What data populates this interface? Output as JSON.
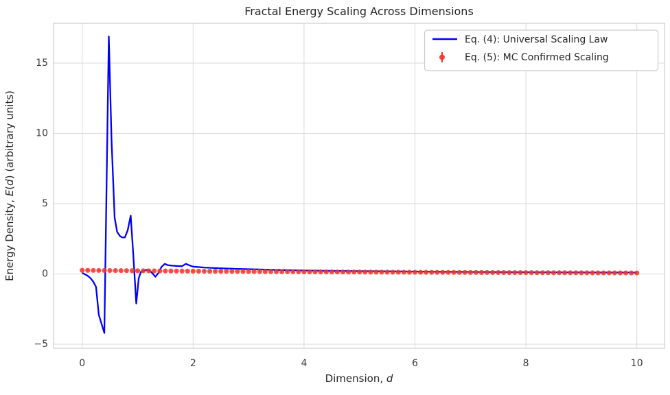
{
  "title": "Fractal Energy Scaling Across Dimensions",
  "axes": {
    "xlabel_prefix": "Dimension, ",
    "xlabel_italic": "d",
    "ylabel_p1": "Energy Density, ",
    "ylabel_E": "E",
    "ylabel_p2": "(",
    "ylabel_d": "d",
    "ylabel_p3": ") (arbitrary units)",
    "xtick_labels": [
      "0",
      "2",
      "4",
      "6",
      "8",
      "10"
    ],
    "ytick_labels": [
      "−5",
      "0",
      "5",
      "10",
      "15"
    ]
  },
  "legend": {
    "entries": [
      {
        "label": "Eq. (4): Universal Scaling Law",
        "marker": "line",
        "color": "#0000f5"
      },
      {
        "label": "Eq. (5): MC Confirmed Scaling",
        "marker": "errorbar-dot",
        "color": "#f0372b"
      }
    ]
  },
  "colors": {
    "line_series": "#0000f5",
    "scatter_series": "#f0372b",
    "errorbar": "#dd2418",
    "grid": "#d9d9d9",
    "spine": "#cbcbcb",
    "text": "#262626"
  },
  "chart_data": {
    "type": "line",
    "title": "Fractal Energy Scaling Across Dimensions",
    "xlabel": "Dimension, d",
    "ylabel": "Energy Density, E(d) (arbitrary units)",
    "xlim": [
      -0.52,
      10.5
    ],
    "ylim": [
      -5.3,
      17.8
    ],
    "xticks": [
      0,
      2,
      4,
      6,
      8,
      10
    ],
    "yticks": [
      -5,
      0,
      5,
      10,
      15
    ],
    "grid": true,
    "legend_position": "upper right",
    "series": [
      {
        "name": "Eq. (4): Universal Scaling Law",
        "type": "line",
        "color": "#0000f5",
        "points": [
          [
            0,
            0.07
          ],
          [
            0.05,
            -0.02
          ],
          [
            0.1,
            -0.13
          ],
          [
            0.15,
            -0.3
          ],
          [
            0.2,
            -0.55
          ],
          [
            0.25,
            -0.92
          ],
          [
            0.3,
            -2.9
          ],
          [
            0.4,
            -4.2
          ],
          [
            0.48,
            16.9
          ],
          [
            0.53,
            9.5
          ],
          [
            0.585,
            4.0
          ],
          [
            0.63,
            3.0
          ],
          [
            0.68,
            2.7
          ],
          [
            0.72,
            2.6
          ],
          [
            0.77,
            2.6
          ],
          [
            0.82,
            3.1
          ],
          [
            0.875,
            4.15
          ],
          [
            0.92,
            1.5
          ],
          [
            0.975,
            -2.1
          ],
          [
            1.02,
            -0.3
          ],
          [
            1.06,
            0.15
          ],
          [
            1.11,
            0.22
          ],
          [
            1.16,
            0.3
          ],
          [
            1.21,
            0.25
          ],
          [
            1.26,
            0.08
          ],
          [
            1.32,
            -0.2
          ],
          [
            1.38,
            0.1
          ],
          [
            1.43,
            0.5
          ],
          [
            1.49,
            0.72
          ],
          [
            1.54,
            0.63
          ],
          [
            1.6,
            0.6
          ],
          [
            1.7,
            0.57
          ],
          [
            1.8,
            0.55
          ],
          [
            1.87,
            0.72
          ],
          [
            1.94,
            0.6
          ],
          [
            2,
            0.52
          ],
          [
            2.2,
            0.46
          ],
          [
            2.4,
            0.42
          ],
          [
            2.6,
            0.39
          ],
          [
            2.8,
            0.36
          ],
          [
            3,
            0.34
          ],
          [
            3.3,
            0.31
          ],
          [
            3.6,
            0.28
          ],
          [
            4,
            0.25
          ],
          [
            4.5,
            0.22
          ],
          [
            5,
            0.2
          ],
          [
            5.5,
            0.185
          ],
          [
            6,
            0.17
          ],
          [
            6.5,
            0.155
          ],
          [
            7,
            0.145
          ],
          [
            7.5,
            0.135
          ],
          [
            8,
            0.125
          ],
          [
            8.5,
            0.12
          ],
          [
            9,
            0.115
          ],
          [
            9.5,
            0.108
          ],
          [
            10,
            0.1
          ]
        ]
      },
      {
        "name": "Eq. (5): MC Confirmed Scaling",
        "type": "scatter-errorbar",
        "color": "#f0372b",
        "x_start": 0,
        "x_step": 0.1,
        "yerr": 0.06,
        "values": [
          0.26,
          0.257,
          0.253,
          0.25,
          0.247,
          0.244,
          0.24,
          0.237,
          0.234,
          0.231,
          0.228,
          0.225,
          0.222,
          0.22,
          0.217,
          0.214,
          0.211,
          0.208,
          0.206,
          0.203,
          0.2,
          0.198,
          0.195,
          0.193,
          0.19,
          0.188,
          0.185,
          0.183,
          0.181,
          0.178,
          0.176,
          0.174,
          0.172,
          0.169,
          0.167,
          0.165,
          0.163,
          0.161,
          0.159,
          0.157,
          0.155,
          0.153,
          0.151,
          0.149,
          0.147,
          0.145,
          0.143,
          0.141,
          0.139,
          0.137,
          0.136,
          0.134,
          0.132,
          0.13,
          0.129,
          0.127,
          0.126,
          0.124,
          0.122,
          0.121,
          0.119,
          0.118,
          0.116,
          0.115,
          0.113,
          0.112,
          0.11,
          0.109,
          0.107,
          0.106,
          0.105,
          0.103,
          0.102,
          0.101,
          0.099,
          0.098,
          0.097,
          0.095,
          0.094,
          0.093,
          0.092,
          0.091,
          0.089,
          0.088,
          0.087,
          0.086,
          0.085,
          0.084,
          0.083,
          0.082,
          0.081,
          0.08,
          0.078,
          0.077,
          0.076,
          0.076,
          0.075,
          0.074,
          0.073,
          0.072,
          0.071
        ]
      }
    ]
  }
}
